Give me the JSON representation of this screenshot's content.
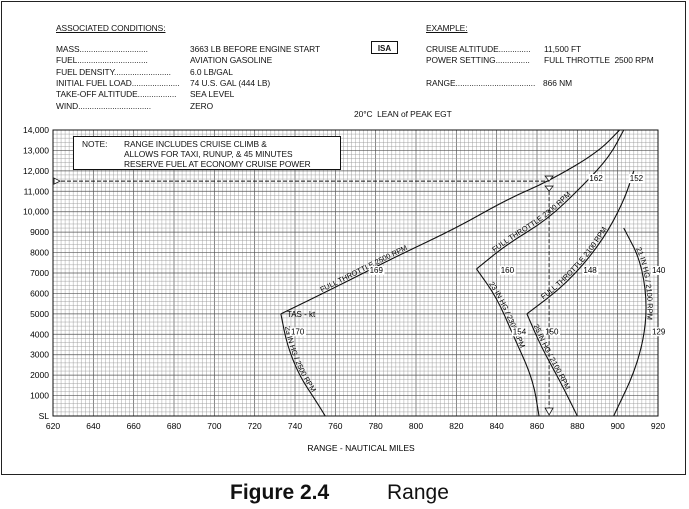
{
  "figure": {
    "number": "Figure 2.4",
    "title": "Range"
  },
  "conditions": {
    "heading": "ASSOCIATED CONDITIONS:",
    "rows": [
      {
        "label": "MASS..............................",
        "value": "3663 LB BEFORE ENGINE START"
      },
      {
        "label": "FUEL...............................",
        "value": "AVIATION GASOLINE"
      },
      {
        "label": "FUEL DENSITY.........................",
        "value": "6.0 LB/GAL"
      },
      {
        "label": "INITIAL FUEL LOAD.....................",
        "value": "74 U.S. GAL (444 LB)"
      },
      {
        "label": "TAKE-OFF ALTITUDE.................",
        "value": "SEA LEVEL"
      },
      {
        "label": "WIND................................",
        "value": "ZERO"
      }
    ]
  },
  "isa_label": "ISA",
  "example": {
    "heading": "EXAMPLE:",
    "rows": [
      {
        "label": "CRUISE ALTITUDE..............",
        "value": "11,500 FT"
      },
      {
        "label": "POWER SETTING...............",
        "value": "FULL THROTTLE  2500 RPM"
      },
      {
        "label": "RANGE...................................",
        "value": "866 NM"
      }
    ]
  },
  "lean_note": "20°C  LEAN of PEAK EGT",
  "note": {
    "label": "NOTE:",
    "lines": [
      "RANGE INCLUDES CRUISE CLIMB &",
      "ALLOWS FOR TAXI, RUNUP, & 45 MINUTES",
      "RESERVE FUEL AT ECONOMY CRUISE POWER"
    ]
  },
  "chart_data": {
    "type": "line",
    "title": "",
    "xlabel": "RANGE - NAUTICAL MILES",
    "ylabel": "",
    "xlim": [
      620,
      920
    ],
    "ylim": [
      0,
      14000
    ],
    "x_ticks": [
      620,
      640,
      660,
      680,
      700,
      720,
      740,
      760,
      780,
      800,
      820,
      840,
      860,
      880,
      900,
      920
    ],
    "y_ticks": [
      {
        "value": 0,
        "label": "SL"
      },
      {
        "value": 1000,
        "label": "1000"
      },
      {
        "value": 2000,
        "label": "2000"
      },
      {
        "value": 3000,
        "label": "3000"
      },
      {
        "value": 4000,
        "label": "4000"
      },
      {
        "value": 5000,
        "label": "5000"
      },
      {
        "value": 6000,
        "label": "6000"
      },
      {
        "value": 7000,
        "label": "7000"
      },
      {
        "value": 8000,
        "label": "8000"
      },
      {
        "value": 9000,
        "label": "9000"
      },
      {
        "value": 10000,
        "label": "10,000"
      },
      {
        "value": 11000,
        "label": "11,000"
      },
      {
        "value": 12000,
        "label": "12,000"
      },
      {
        "value": 13000,
        "label": "13,000"
      },
      {
        "value": 14000,
        "label": "14,000"
      }
    ],
    "grid": true,
    "series": [
      {
        "name": "23 IN HG / 2500 RPM",
        "points": [
          [
            733,
            5000
          ],
          [
            736,
            3500
          ],
          [
            742,
            2000
          ],
          [
            750,
            800
          ],
          [
            755,
            0
          ]
        ]
      },
      {
        "name": "FULL THROTTLE  2500 RPM",
        "points": [
          [
            733,
            5000
          ],
          [
            760,
            6300
          ],
          [
            790,
            7800
          ],
          [
            820,
            9200
          ],
          [
            845,
            10600
          ],
          [
            866,
            11500
          ],
          [
            890,
            12900
          ],
          [
            901,
            14000
          ]
        ]
      },
      {
        "name": "23 IN HG / 2300 RPM",
        "points": [
          [
            830,
            7200
          ],
          [
            840,
            5800
          ],
          [
            848,
            4000
          ],
          [
            858,
            1800
          ],
          [
            861,
            0
          ]
        ]
      },
      {
        "name": "FULL THROTTLE  2300 RPM",
        "points": [
          [
            830,
            7200
          ],
          [
            845,
            8400
          ],
          [
            865,
            9600
          ],
          [
            883,
            11300
          ],
          [
            896,
            12700
          ],
          [
            903,
            14000
          ]
        ]
      },
      {
        "name": "25 IN HG / 2100 RPM",
        "points": [
          [
            855,
            5000
          ],
          [
            862,
            3400
          ],
          [
            872,
            1600
          ],
          [
            880,
            0
          ]
        ]
      },
      {
        "name": "FULL THROTTLE  2100 RPM",
        "points": [
          [
            855,
            5000
          ],
          [
            875,
            6500
          ],
          [
            892,
            8500
          ],
          [
            903,
            10500
          ],
          [
            908,
            12000
          ]
        ]
      },
      {
        "name": "21 IN HG / 2100 RPM",
        "points": [
          [
            903,
            9200
          ],
          [
            912,
            7500
          ],
          [
            915,
            5000
          ],
          [
            910,
            2500
          ],
          [
            898,
            0
          ]
        ]
      }
    ],
    "tas_label": "TAS - kt",
    "tas_annotations": [
      {
        "text": "170",
        "x": 738,
        "y": 4000
      },
      {
        "text": "169",
        "x": 777,
        "y": 7000
      },
      {
        "text": "160",
        "x": 842,
        "y": 7000
      },
      {
        "text": "162",
        "x": 886,
        "y": 11500
      },
      {
        "text": "152",
        "x": 906,
        "y": 11500
      },
      {
        "text": "148",
        "x": 883,
        "y": 7000
      },
      {
        "text": "140",
        "x": 917,
        "y": 7000
      },
      {
        "text": "154",
        "x": 848,
        "y": 4000
      },
      {
        "text": "150",
        "x": 864,
        "y": 4000
      },
      {
        "text": "129",
        "x": 917,
        "y": 4000
      }
    ],
    "example_altitude": 11500,
    "example_range": 866
  }
}
